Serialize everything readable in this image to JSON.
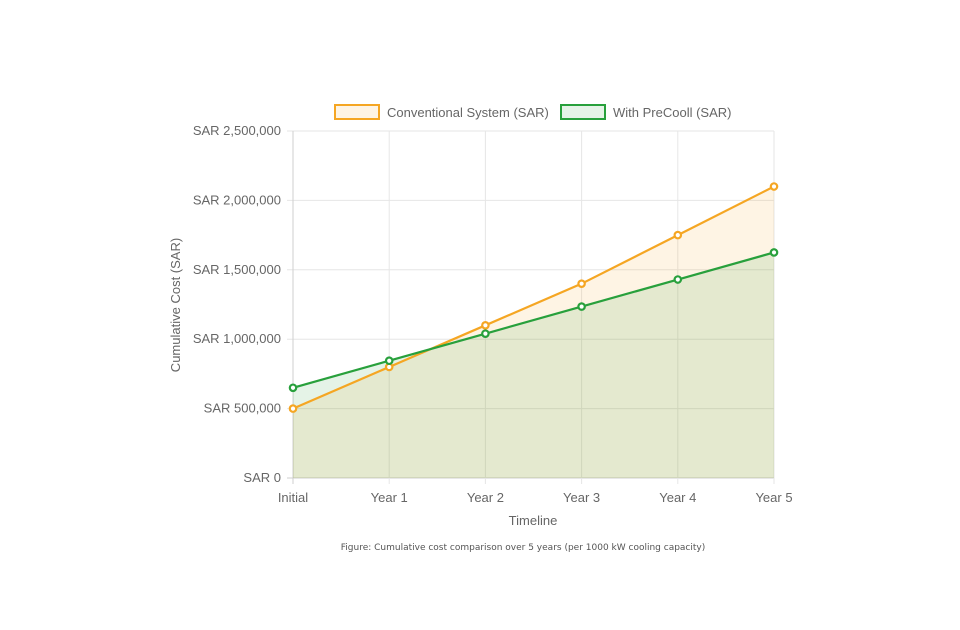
{
  "caption": "Figure: Cumulative cost comparison over 5 years (per 1000 kW cooling capacity)",
  "chart_data": {
    "type": "area",
    "categories": [
      "Initial",
      "Year 1",
      "Year 2",
      "Year 3",
      "Year 4",
      "Year 5"
    ],
    "series": [
      {
        "name": "Conventional System (SAR)",
        "values": [
          500000,
          800000,
          1100000,
          1400000,
          1750000,
          2100000
        ],
        "color": "#f5a623",
        "fill": "rgba(245,166,35,0.12)"
      },
      {
        "name": "With PreCooll (SAR)",
        "values": [
          650000,
          845000,
          1040000,
          1235000,
          1430000,
          1625000
        ],
        "color": "#28a03c",
        "fill": "rgba(40,160,60,0.12)"
      }
    ],
    "xlabel": "Timeline",
    "ylabel": "Cumulative Cost (SAR)",
    "ylim": [
      0,
      2500000
    ],
    "yticks": [
      0,
      500000,
      1000000,
      1500000,
      2000000,
      2500000
    ],
    "ytick_labels": [
      "SAR 0",
      "SAR 500,000",
      "SAR 1,000,000",
      "SAR 1,500,000",
      "SAR 2,000,000",
      "SAR 2,500,000"
    ],
    "grid": true,
    "legend_position": "top"
  }
}
